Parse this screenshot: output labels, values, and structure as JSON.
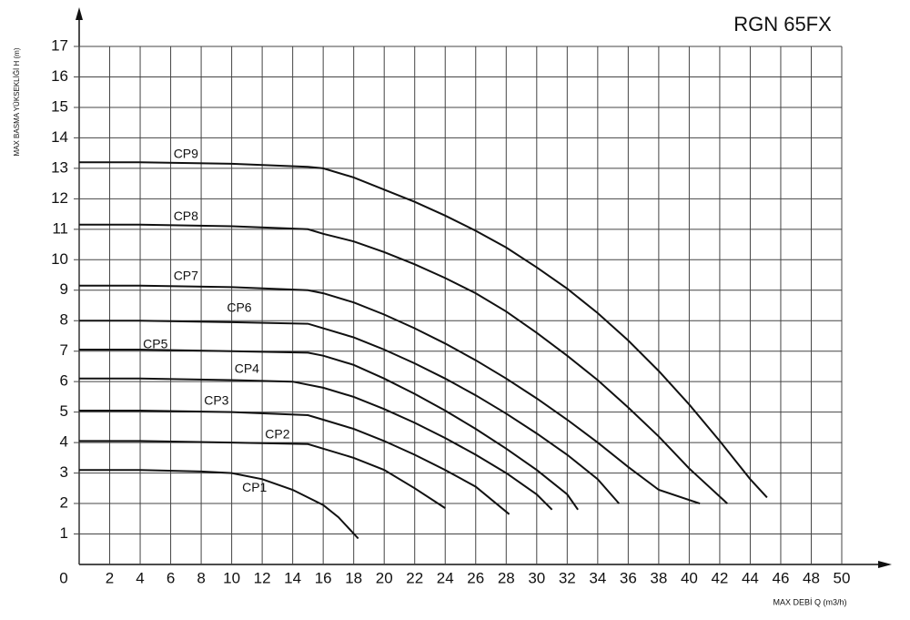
{
  "chart_data": {
    "type": "line",
    "title": "RGN 65FX",
    "y_label": "MAX BASMA YÜKSEKLİĞİ H (m)",
    "x_label": "MAX DEBİ  Q (m3/h)",
    "xlim": [
      0,
      50
    ],
    "ylim": [
      0,
      17
    ],
    "xticks": [
      0,
      2,
      4,
      6,
      8,
      10,
      12,
      14,
      16,
      18,
      20,
      22,
      24,
      26,
      28,
      30,
      32,
      34,
      36,
      38,
      40,
      42,
      44,
      46,
      48,
      50
    ],
    "yticks": [
      1,
      2,
      3,
      4,
      5,
      6,
      7,
      8,
      9,
      10,
      11,
      12,
      13,
      14,
      15,
      16,
      17
    ],
    "grid": true,
    "series": [
      {
        "name": "CP1",
        "color": "#111111",
        "x": [
          0,
          4,
          8,
          10,
          12,
          14,
          16,
          17,
          18.3
        ],
        "values": [
          3.1,
          3.1,
          3.05,
          3.0,
          2.8,
          2.45,
          1.95,
          1.55,
          0.85
        ]
      },
      {
        "name": "CP2",
        "color": "#111111",
        "x": [
          0,
          4,
          10,
          15,
          16,
          18,
          20,
          22,
          24
        ],
        "values": [
          4.05,
          4.05,
          4.0,
          3.95,
          3.8,
          3.5,
          3.1,
          2.5,
          1.85
        ]
      },
      {
        "name": "CP3",
        "color": "#111111",
        "x": [
          0,
          4,
          10,
          15,
          16,
          18,
          20,
          22,
          24,
          26,
          28.2
        ],
        "values": [
          5.05,
          5.05,
          5.0,
          4.9,
          4.75,
          4.45,
          4.05,
          3.6,
          3.1,
          2.55,
          1.65
        ]
      },
      {
        "name": "CP4",
        "color": "#111111",
        "x": [
          0,
          4,
          10,
          14,
          16,
          18,
          20,
          22,
          24,
          26,
          28,
          30,
          31
        ],
        "values": [
          6.1,
          6.1,
          6.05,
          6.0,
          5.8,
          5.5,
          5.1,
          4.65,
          4.15,
          3.6,
          3.0,
          2.3,
          1.8
        ]
      },
      {
        "name": "CP5",
        "color": "#111111",
        "x": [
          0,
          4,
          10,
          15,
          16,
          18,
          20,
          22,
          24,
          26,
          28,
          30,
          32,
          32.7
        ],
        "values": [
          7.05,
          7.05,
          7.0,
          6.95,
          6.85,
          6.55,
          6.1,
          5.6,
          5.05,
          4.45,
          3.8,
          3.1,
          2.3,
          1.8
        ]
      },
      {
        "name": "CP6",
        "color": "#111111",
        "x": [
          0,
          4,
          10,
          15,
          16,
          18,
          20,
          22,
          24,
          26,
          28,
          30,
          32,
          34,
          35.4
        ],
        "values": [
          8.0,
          8.0,
          7.95,
          7.9,
          7.75,
          7.45,
          7.05,
          6.6,
          6.1,
          5.55,
          4.95,
          4.3,
          3.6,
          2.8,
          2.0
        ]
      },
      {
        "name": "CP7",
        "color": "#111111",
        "x": [
          0,
          4,
          10,
          15,
          16,
          18,
          20,
          22,
          24,
          26,
          28,
          30,
          32,
          34,
          36,
          38,
          40.7
        ],
        "values": [
          9.15,
          9.15,
          9.1,
          9.0,
          8.9,
          8.6,
          8.2,
          7.75,
          7.25,
          6.7,
          6.1,
          5.45,
          4.75,
          4.0,
          3.2,
          2.45,
          2.0
        ]
      },
      {
        "name": "CP8",
        "color": "#111111",
        "x": [
          0,
          4,
          10,
          15,
          16,
          18,
          20,
          22,
          24,
          26,
          28,
          30,
          32,
          34,
          36,
          38,
          40,
          42.5
        ],
        "values": [
          11.15,
          11.15,
          11.1,
          11.0,
          10.85,
          10.6,
          10.25,
          9.85,
          9.4,
          8.9,
          8.3,
          7.6,
          6.85,
          6.05,
          5.15,
          4.2,
          3.15,
          2.0
        ]
      },
      {
        "name": "CP9",
        "color": "#111111",
        "x": [
          0,
          4,
          10,
          15,
          16,
          18,
          20,
          22,
          24,
          26,
          28,
          30,
          32,
          34,
          36,
          38,
          40,
          42,
          44,
          45.1
        ],
        "values": [
          13.2,
          13.2,
          13.15,
          13.05,
          13.0,
          12.7,
          12.3,
          11.9,
          11.45,
          10.95,
          10.4,
          9.75,
          9.05,
          8.25,
          7.35,
          6.35,
          5.25,
          4.05,
          2.8,
          2.2
        ]
      }
    ]
  }
}
